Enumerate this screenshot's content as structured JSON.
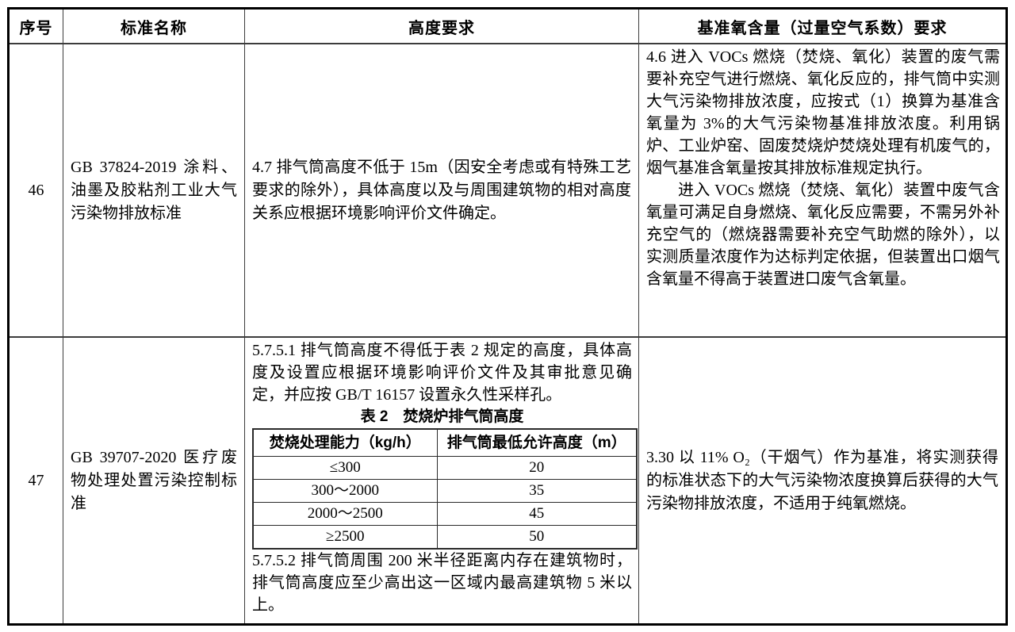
{
  "table": {
    "headers": {
      "no": "序号",
      "standard_name": "标准名称",
      "height_requirement": "高度要求",
      "oxygen_requirement": "基准氧含量（过量空气系数）要求"
    },
    "rows": [
      {
        "no": "46",
        "standard_name": "GB 37824-2019 涂料、油墨及胶粘剂工业大气污染物排放标准",
        "height_requirement": "4.7 排气筒高度不低于 15m（因安全考虑或有特殊工艺要求的除外），具体高度以及与周围建筑物的相对高度关系应根据环境影响评价文件确定。",
        "oxygen_requirement_p1": "4.6 进入 VOCs 燃烧（焚烧、氧化）装置的废气需要补充空气进行燃烧、氧化反应的，排气筒中实测大气污染物排放浓度，应按式（1）换算为基准含氧量为 3%的大气污染物基准排放浓度。利用锅炉、工业炉窑、固废焚烧炉焚烧处理有机废气的，烟气基准含氧量按其排放标准规定执行。",
        "oxygen_requirement_p2": "进入 VOCs 燃烧（焚烧、氧化）装置中废气含氧量可满足自身燃烧、氧化反应需要，不需另外补充空气的（燃烧器需要补充空气助燃的除外），以实测质量浓度作为达标判定依据，但装置出口烟气含氧量不得高于装置进口废气含氧量。"
      },
      {
        "no": "47",
        "standard_name": "GB 39707-2020 医疗废物处理处置污染控制标准",
        "height_intro": "5.7.5.1 排气筒高度不得低于表 2 规定的高度，具体高度及设置应根据环境影响评价文件及其审批意见确定，并应按 GB/T 16157 设置永久性采样孔。",
        "inner_table": {
          "title": "表 2　焚烧炉排气筒高度",
          "headers": [
            "焚烧处理能力（kg/h）",
            "排气筒最低允许高度（m）"
          ],
          "rows": [
            [
              "≤300",
              "20"
            ],
            [
              "300～2000",
              "35"
            ],
            [
              "2000～2500",
              "45"
            ],
            [
              "≥2500",
              "50"
            ]
          ]
        },
        "height_outro": "5.7.5.2 排气筒周围 200 米半径距离内存在建筑物时，排气筒高度应至少高出这一区域内最高建筑物 5 米以上。",
        "oxygen_requirement": "3.30 以 11% O₂（干烟气）作为基准，将实测获得的标准状态下的大气污染物浓度换算后获得的大气污染物排放浓度，不适用于纯氧燃烧。"
      }
    ]
  }
}
